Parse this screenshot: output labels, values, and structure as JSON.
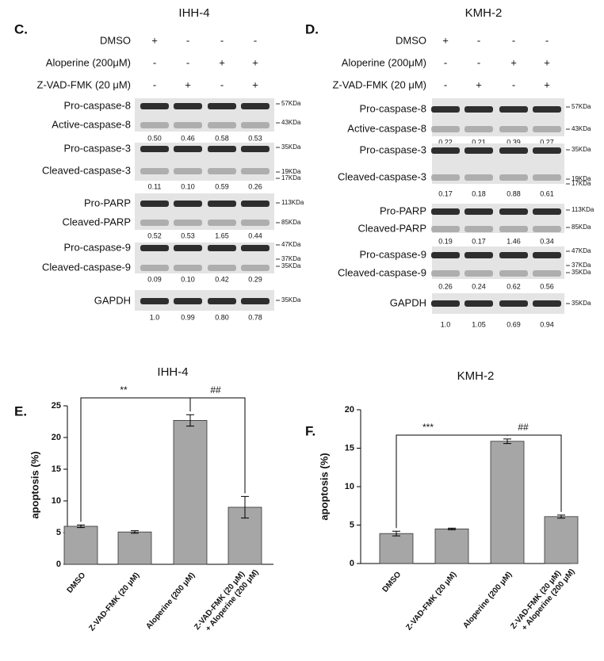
{
  "blots": [
    {
      "letter": "C.",
      "title": "IHH-4",
      "treatments": [
        {
          "label": "DMSO",
          "signs": [
            "+",
            "-",
            "-",
            "-"
          ]
        },
        {
          "label": "Aloperine (200μM)",
          "signs": [
            "-",
            "-",
            "+",
            "+"
          ]
        },
        {
          "label": "Z-VAD-FMK (20 μM)",
          "signs": [
            "-",
            "+",
            "-",
            "+"
          ]
        }
      ],
      "blocks": [
        {
          "labels": [
            "Pro-caspase-8",
            "Active-caspase-8"
          ],
          "quant": [
            "0.50",
            "0.46",
            "0.58",
            "0.53"
          ],
          "markers": [
            "57KDa",
            "43KDa"
          ]
        },
        {
          "labels": [
            "Pro-caspase-3",
            "Cleaved-caspase-3"
          ],
          "quant": [
            "0.11",
            "0.10",
            "0.59",
            "0.26"
          ],
          "markers": [
            "35KDa",
            "19KDa",
            "17KDa"
          ]
        },
        {
          "labels": [
            "Pro-PARP",
            "Cleaved-PARP"
          ],
          "quant": [
            "0.52",
            "0.53",
            "1.65",
            "0.44"
          ],
          "markers": [
            "113KDa",
            "85KDa"
          ]
        },
        {
          "labels": [
            "Pro-caspase-9",
            "Cleaved-caspase-9"
          ],
          "quant": [
            "0.09",
            "0.10",
            "0.42",
            "0.29"
          ],
          "markers": [
            "47KDa",
            "37KDa",
            "35KDa"
          ]
        },
        {
          "labels": [
            "GAPDH"
          ],
          "quant": [
            "1.0",
            "0.99",
            "0.80",
            "0.78"
          ],
          "markers": [
            "35KDa"
          ]
        }
      ]
    },
    {
      "letter": "D.",
      "title": "KMH-2",
      "treatments": [
        {
          "label": "DMSO",
          "signs": [
            "+",
            "-",
            "-",
            "-"
          ]
        },
        {
          "label": "Aloperine (200μM)",
          "signs": [
            "-",
            "-",
            "+",
            "+"
          ]
        },
        {
          "label": "Z-VAD-FMK (20 μM)",
          "signs": [
            "-",
            "+",
            "-",
            "+"
          ]
        }
      ],
      "blocks": [
        {
          "labels": [
            "Pro-caspase-8",
            "Active-caspase-8"
          ],
          "quant": [
            "0.22",
            "0.21",
            "0.39",
            "0.27"
          ],
          "markers": [
            "57KDa",
            "43KDa"
          ]
        },
        {
          "labels": [
            "Pro-caspase-3",
            "Cleaved-caspase-3"
          ],
          "quant": [
            "0.17",
            "0.18",
            "0.88",
            "0.61"
          ],
          "markers": [
            "35KDa",
            "19KDa",
            "17KDa"
          ]
        },
        {
          "labels": [
            "Pro-PARP",
            "Cleaved-PARP"
          ],
          "quant": [
            "0.19",
            "0.17",
            "1.46",
            "0.34"
          ],
          "markers": [
            "113KDa",
            "85KDa"
          ]
        },
        {
          "labels": [
            "Pro-caspase-9",
            "Cleaved-caspase-9"
          ],
          "quant": [
            "0.26",
            "0.24",
            "0.62",
            "0.56"
          ],
          "markers": [
            "47KDa",
            "37KDa",
            "35KDa"
          ]
        },
        {
          "labels": [
            "GAPDH"
          ],
          "quant": [
            "1.0",
            "1.05",
            "0.69",
            "0.94"
          ],
          "markers": [
            "35KDa"
          ]
        }
      ]
    }
  ],
  "chart_data": [
    {
      "type": "bar",
      "letter": "E.",
      "title": "IHH-4",
      "y_label": "apoptosis (%)",
      "categories": [
        "DMSO",
        "Z-VAD-FMK (20 μM)",
        "Aloperine (200 μM)",
        "Z-VAD-FMK (20 μM) + Aloperine (200 μM)"
      ],
      "values": [
        6.0,
        5.1,
        22.7,
        9.0
      ],
      "errors": [
        0.2,
        0.2,
        0.9,
        1.7
      ],
      "color": "#a6a6a6",
      "ylim": [
        0,
        25
      ],
      "yticks": [
        0,
        5,
        10,
        15,
        20,
        25
      ],
      "annotations": [
        "**",
        "##"
      ]
    },
    {
      "type": "bar",
      "letter": "F.",
      "title": "KMH-2",
      "y_label": "apoptosis (%)",
      "categories": [
        "DMSO",
        "Z-VAD-FMK (20 μM)",
        "Aloperine (200 μM)",
        "Z-VAD-FMK (20 μM) + Aloperine (200 μM)"
      ],
      "values": [
        3.9,
        4.5,
        15.9,
        6.1
      ],
      "errors": [
        0.3,
        0.1,
        0.3,
        0.2
      ],
      "color": "#a6a6a6",
      "ylim": [
        0,
        20
      ],
      "yticks": [
        0,
        5,
        10,
        15,
        20
      ],
      "annotations": [
        "***",
        "##"
      ]
    }
  ]
}
